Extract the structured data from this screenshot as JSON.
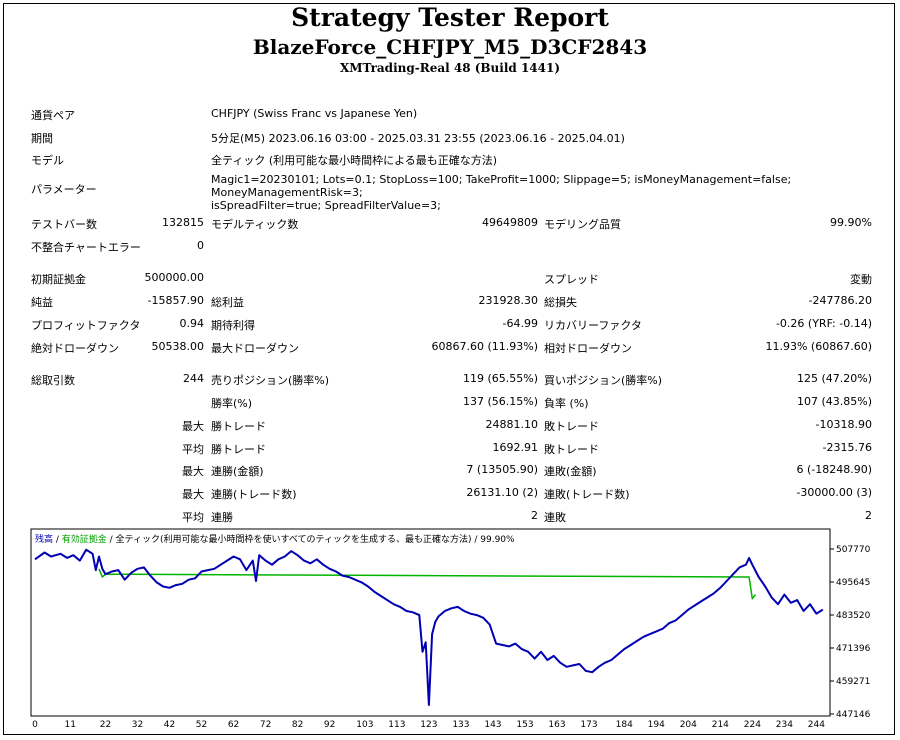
{
  "report": {
    "title": "Strategy Tester Report",
    "subtitle": "BlazeForce_CHFJPY_M5_D3CF2843",
    "server": "XMTrading-Real 48 (Build 1441)"
  },
  "info": {
    "pair_label": "通貨ペア",
    "pair_value": "CHFJPY (Swiss Franc vs Japanese Yen)",
    "period_label": "期間",
    "period_value": "5分足(M5) 2023.06.16 03:00 - 2025.03.31 23:55 (2023.06.16 - 2025.04.01)",
    "model_label": "モデル",
    "model_value": "全ティック (利用可能な最小時間枠による最も正確な方法)",
    "params_label": "パラメーター",
    "params_line1": "Magic1=20230101; Lots=0.1; StopLoss=100; TakeProfit=1000; Slippage=5; isMoneyManagement=false; MoneyManagementRisk=3;",
    "params_line2": "isSpreadFilter=true; SpreadFilterValue=3;"
  },
  "stats": {
    "bars_label": "テストバー数",
    "bars_value": "132815",
    "ticks_label": "モデルティック数",
    "ticks_value": "49649809",
    "quality_label": "モデリング品質",
    "quality_value": "99.90%",
    "mismatch_label": "不整合チャートエラー",
    "mismatch_value": "0",
    "deposit_label": "初期証拠金",
    "deposit_value": "500000.00",
    "spread_label": "スプレッド",
    "spread_value": "変動",
    "net_label": "純益",
    "net_value": "-15857.90",
    "gross_profit_label": "総利益",
    "gross_profit_value": "231928.30",
    "gross_loss_label": "総損失",
    "gross_loss_value": "-247786.20",
    "pf_label": "プロフィットファクタ",
    "pf_value": "0.94",
    "expected_label": "期待利得",
    "expected_value": "-64.99",
    "recovery_label": "リカバリーファクタ",
    "recovery_value": "-0.26 (YRF: -0.14)",
    "abs_dd_label": "絶対ドローダウン",
    "abs_dd_value": "50538.00",
    "max_dd_label": "最大ドローダウン",
    "max_dd_value": "60867.60 (11.93%)",
    "rel_dd_label": "相対ドローダウン",
    "rel_dd_value": "11.93% (60867.60)",
    "trades_label": "総取引数",
    "trades_value": "244",
    "short_label": "売りポジション(勝率%)",
    "short_value": "119 (65.55%)",
    "long_label": "買いポジション(勝率%)",
    "long_value": "125 (47.20%)",
    "winrate_label": "勝率(%)",
    "winrate_value": "137 (56.15%)",
    "lossrate_label": "負率 (%)",
    "lossrate_value": "107 (43.85%)",
    "max_label": "最大",
    "avg_label": "平均",
    "max_win_label": "勝トレード",
    "max_win_value": "24881.10",
    "max_loss_label": "敗トレード",
    "max_loss_value": "-10318.90",
    "avg_win_label": "勝トレード",
    "avg_win_value": "1692.91",
    "avg_loss_label": "敗トレード",
    "avg_loss_value": "-2315.76",
    "consec_win_amt_label": "連勝(金額)",
    "consec_win_amt_value": "7 (13505.90)",
    "consec_loss_amt_label": "連敗(金額)",
    "consec_loss_amt_value": "6 (-18248.90)",
    "consec_win_cnt_label": "連勝(トレード数)",
    "consec_win_cnt_value": "26131.10 (2)",
    "consec_loss_cnt_label": "連敗(トレード数)",
    "consec_loss_cnt_value": "-30000.00 (3)",
    "avg_consec_win_label": "連勝",
    "avg_consec_win_value": "2",
    "avg_consec_loss_label": "連敗",
    "avg_consec_loss_value": "2"
  },
  "chart_legend": {
    "balance": "残高",
    "sep": " / ",
    "equity": "有効証拠金",
    "rest": " / 全ティック(利用可能な最小時間枠を使いすべてのティックを生成する、最も正確な方法) / 99.90%"
  },
  "chart_data": {
    "type": "line",
    "ylim": [
      447146,
      510000
    ],
    "xlim": [
      0,
      247
    ],
    "x_ticks": [
      0,
      11,
      22,
      32,
      42,
      52,
      62,
      72,
      82,
      92,
      103,
      113,
      123,
      133,
      143,
      153,
      163,
      173,
      184,
      194,
      204,
      214,
      224,
      234,
      244
    ],
    "y_ticks": [
      507770,
      495645,
      483520,
      471396,
      459271,
      447146
    ],
    "series": [
      {
        "name": "残高",
        "color": "#0000b4",
        "x": [
          0,
          3,
          5,
          8,
          10,
          12,
          14,
          16,
          18,
          19,
          20,
          21,
          22,
          24,
          26,
          28,
          30,
          32,
          34,
          36,
          38,
          40,
          42,
          44,
          46,
          48,
          50,
          52,
          54,
          56,
          58,
          60,
          62,
          64,
          66,
          68,
          69,
          70,
          72,
          74,
          76,
          78,
          80,
          82,
          84,
          86,
          88,
          90,
          92,
          94,
          96,
          98,
          100,
          102,
          104,
          106,
          108,
          110,
          112,
          114,
          116,
          118,
          120,
          121,
          122,
          123,
          124,
          125,
          126,
          128,
          130,
          132,
          134,
          136,
          138,
          140,
          142,
          144,
          146,
          148,
          150,
          152,
          154,
          156,
          158,
          160,
          162,
          164,
          166,
          168,
          170,
          172,
          174,
          176,
          178,
          180,
          182,
          184,
          186,
          188,
          190,
          192,
          194,
          196,
          198,
          200,
          202,
          204,
          206,
          208,
          210,
          212,
          214,
          216,
          218,
          220,
          222,
          223,
          224,
          226,
          228,
          230,
          232,
          234,
          236,
          238,
          240,
          242,
          244,
          246
        ],
        "y": [
          504000,
          506500,
          505000,
          506000,
          504500,
          505500,
          503500,
          507500,
          506000,
          500000,
          505000,
          500500,
          498500,
          499500,
          500000,
          496500,
          499000,
          500500,
          501000,
          498000,
          495500,
          494000,
          493500,
          494500,
          495000,
          496500,
          497000,
          499500,
          500000,
          500500,
          502000,
          503500,
          505000,
          504000,
          500000,
          503500,
          496000,
          505500,
          503500,
          502000,
          504000,
          505000,
          507000,
          505500,
          503500,
          502500,
          504000,
          502000,
          500500,
          499500,
          498000,
          497500,
          496500,
          495500,
          494000,
          492000,
          490500,
          489000,
          487500,
          486500,
          485000,
          484500,
          483500,
          470000,
          473500,
          450500,
          476500,
          481000,
          483000,
          485000,
          486000,
          486500,
          485000,
          484000,
          483500,
          482500,
          480000,
          473000,
          472500,
          472000,
          473000,
          471000,
          470000,
          467500,
          470000,
          467000,
          468500,
          466000,
          464500,
          465000,
          465500,
          463000,
          462500,
          464500,
          466000,
          467000,
          469000,
          471000,
          472500,
          474000,
          475500,
          476500,
          477500,
          478500,
          480500,
          481500,
          483500,
          485500,
          487000,
          488500,
          490000,
          491500,
          493500,
          496000,
          498500,
          501000,
          502000,
          504500,
          502000,
          497500,
          494000,
          490000,
          487500,
          491000,
          488000,
          489000,
          485000,
          487500,
          484000,
          485500
        ]
      },
      {
        "name": "有効証拠金",
        "color": "#00b400",
        "x": [
          20,
          21,
          22,
          223,
          224,
          225
        ],
        "y": [
          500500,
          497500,
          498500,
          497500,
          489500,
          491000
        ]
      }
    ]
  }
}
